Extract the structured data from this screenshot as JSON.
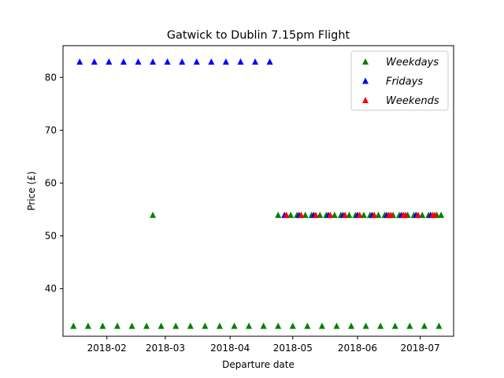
{
  "chart_data": {
    "type": "scatter",
    "title": "Gatwick to Dublin 7.15pm Flight",
    "xlabel": "Departure date",
    "ylabel": "Price (£)",
    "x_type": "date",
    "xlim": [
      "2018-01-11",
      "2018-07-17"
    ],
    "ylim": [
      31,
      86
    ],
    "xticks": [
      "2018-02-01",
      "2018-03-01",
      "2018-04-01",
      "2018-05-01",
      "2018-06-01",
      "2018-07-01"
    ],
    "xtick_labels": [
      "2018-02",
      "2018-03",
      "2018-04",
      "2018-05",
      "2018-06",
      "2018-07"
    ],
    "yticks": [
      40,
      50,
      60,
      70,
      80
    ],
    "ytick_labels": [
      "40",
      "50",
      "60",
      "70",
      "80"
    ],
    "marker": "triangle-up",
    "legend_position": "top-right",
    "series": [
      {
        "name": "Weekdays",
        "color": "#008000",
        "points": [
          {
            "x": "2018-01-16",
            "y": 33
          },
          {
            "x": "2018-01-23",
            "y": 33
          },
          {
            "x": "2018-01-30",
            "y": 33
          },
          {
            "x": "2018-02-06",
            "y": 33
          },
          {
            "x": "2018-02-13",
            "y": 33
          },
          {
            "x": "2018-02-20",
            "y": 33
          },
          {
            "x": "2018-02-27",
            "y": 33
          },
          {
            "x": "2018-03-06",
            "y": 33
          },
          {
            "x": "2018-03-13",
            "y": 33
          },
          {
            "x": "2018-03-20",
            "y": 33
          },
          {
            "x": "2018-03-27",
            "y": 33
          },
          {
            "x": "2018-04-03",
            "y": 33
          },
          {
            "x": "2018-04-10",
            "y": 33
          },
          {
            "x": "2018-04-17",
            "y": 33
          },
          {
            "x": "2018-04-24",
            "y": 33
          },
          {
            "x": "2018-05-01",
            "y": 33
          },
          {
            "x": "2018-05-08",
            "y": 33
          },
          {
            "x": "2018-05-15",
            "y": 33
          },
          {
            "x": "2018-05-22",
            "y": 33
          },
          {
            "x": "2018-05-29",
            "y": 33
          },
          {
            "x": "2018-06-05",
            "y": 33
          },
          {
            "x": "2018-06-12",
            "y": 33
          },
          {
            "x": "2018-06-19",
            "y": 33
          },
          {
            "x": "2018-06-26",
            "y": 33
          },
          {
            "x": "2018-07-03",
            "y": 33
          },
          {
            "x": "2018-07-10",
            "y": 33
          },
          {
            "x": "2018-02-23",
            "y": 54
          },
          {
            "x": "2018-04-24",
            "y": 54
          },
          {
            "x": "2018-04-30",
            "y": 54
          },
          {
            "x": "2018-05-03",
            "y": 54
          },
          {
            "x": "2018-05-07",
            "y": 54
          },
          {
            "x": "2018-05-10",
            "y": 54
          },
          {
            "x": "2018-05-14",
            "y": 54
          },
          {
            "x": "2018-05-17",
            "y": 54
          },
          {
            "x": "2018-05-21",
            "y": 54
          },
          {
            "x": "2018-05-24",
            "y": 54
          },
          {
            "x": "2018-05-28",
            "y": 54
          },
          {
            "x": "2018-05-31",
            "y": 54
          },
          {
            "x": "2018-06-04",
            "y": 54
          },
          {
            "x": "2018-06-07",
            "y": 54
          },
          {
            "x": "2018-06-11",
            "y": 54
          },
          {
            "x": "2018-06-14",
            "y": 54
          },
          {
            "x": "2018-06-18",
            "y": 54
          },
          {
            "x": "2018-06-21",
            "y": 54
          },
          {
            "x": "2018-06-25",
            "y": 54
          },
          {
            "x": "2018-06-28",
            "y": 54
          },
          {
            "x": "2018-07-02",
            "y": 54
          },
          {
            "x": "2018-07-05",
            "y": 54
          },
          {
            "x": "2018-07-09",
            "y": 54
          },
          {
            "x": "2018-07-11",
            "y": 54
          }
        ]
      },
      {
        "name": "Fridays",
        "color": "#0000ff",
        "points": [
          {
            "x": "2018-01-19",
            "y": 83
          },
          {
            "x": "2018-01-26",
            "y": 83
          },
          {
            "x": "2018-02-02",
            "y": 83
          },
          {
            "x": "2018-02-09",
            "y": 83
          },
          {
            "x": "2018-02-16",
            "y": 83
          },
          {
            "x": "2018-02-23",
            "y": 83
          },
          {
            "x": "2018-03-02",
            "y": 83
          },
          {
            "x": "2018-03-09",
            "y": 83
          },
          {
            "x": "2018-03-16",
            "y": 83
          },
          {
            "x": "2018-03-23",
            "y": 83
          },
          {
            "x": "2018-03-30",
            "y": 83
          },
          {
            "x": "2018-04-06",
            "y": 83
          },
          {
            "x": "2018-04-13",
            "y": 83
          },
          {
            "x": "2018-04-20",
            "y": 83
          },
          {
            "x": "2018-04-27",
            "y": 54
          },
          {
            "x": "2018-05-04",
            "y": 54
          },
          {
            "x": "2018-05-11",
            "y": 54
          },
          {
            "x": "2018-05-18",
            "y": 54
          },
          {
            "x": "2018-05-25",
            "y": 54
          },
          {
            "x": "2018-06-01",
            "y": 54
          },
          {
            "x": "2018-06-08",
            "y": 54
          },
          {
            "x": "2018-06-15",
            "y": 54
          },
          {
            "x": "2018-06-22",
            "y": 54
          },
          {
            "x": "2018-06-29",
            "y": 54
          },
          {
            "x": "2018-07-06",
            "y": 54
          }
        ]
      },
      {
        "name": "Weekends",
        "color": "#ff0000",
        "points": [
          {
            "x": "2018-04-28",
            "y": 54
          },
          {
            "x": "2018-05-05",
            "y": 54
          },
          {
            "x": "2018-05-12",
            "y": 54
          },
          {
            "x": "2018-05-19",
            "y": 54
          },
          {
            "x": "2018-05-26",
            "y": 54
          },
          {
            "x": "2018-06-02",
            "y": 54
          },
          {
            "x": "2018-06-09",
            "y": 54
          },
          {
            "x": "2018-06-16",
            "y": 54
          },
          {
            "x": "2018-06-17",
            "y": 54
          },
          {
            "x": "2018-06-23",
            "y": 54
          },
          {
            "x": "2018-06-24",
            "y": 54
          },
          {
            "x": "2018-06-30",
            "y": 54
          },
          {
            "x": "2018-07-07",
            "y": 54
          },
          {
            "x": "2018-07-08",
            "y": 54
          }
        ]
      }
    ]
  }
}
